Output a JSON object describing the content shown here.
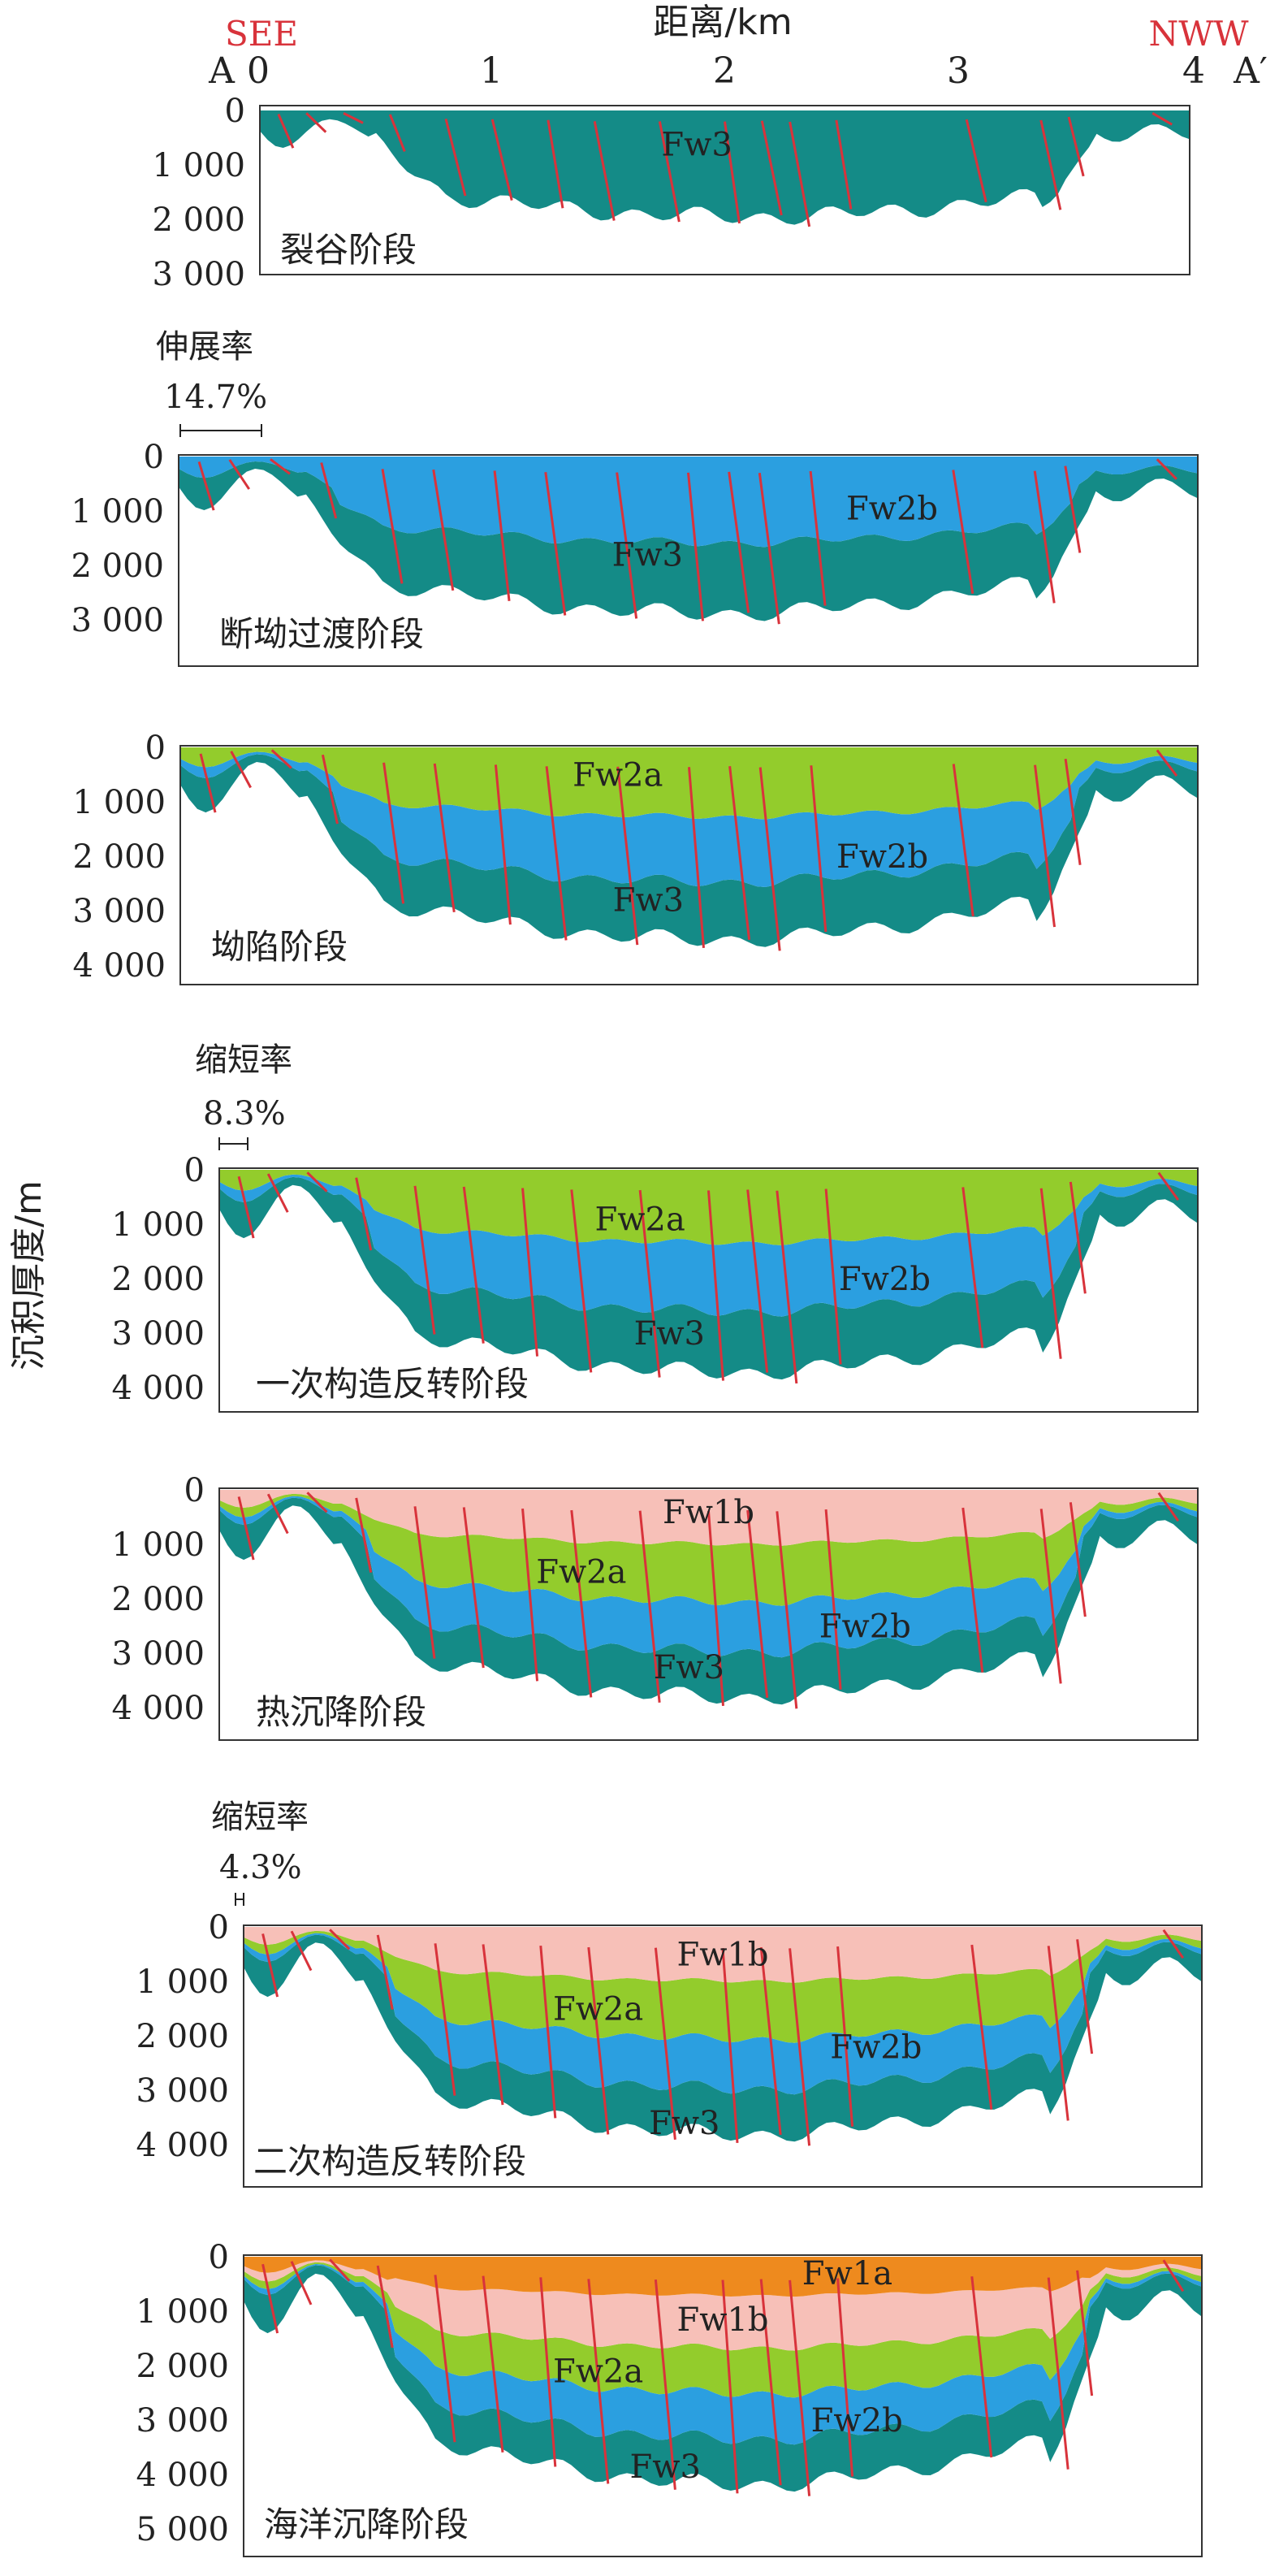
{
  "header": {
    "title": "距离/km",
    "left_end": "A",
    "right_end": "A′",
    "left_direction": "SEE",
    "right_direction": "NWW",
    "x_ticks": [
      "0",
      "1",
      "2",
      "3",
      "4"
    ]
  },
  "y_axis_title": "沉积厚度/m",
  "colors": {
    "Fw3": "#148B87",
    "Fw2b": "#2B9FE0",
    "Fw2a": "#93CC2C",
    "Fw1b": "#F7C0B8",
    "Fw1a": "#EE8A1E",
    "fault": "#D8333B",
    "direction": "#D8333B"
  },
  "panels": [
    {
      "stage": "裂谷阶段",
      "y_ticks": [
        "0",
        "1 000",
        "2 000",
        "3 000"
      ],
      "layers": [
        "Fw3"
      ],
      "labels": [
        "Fw3"
      ]
    },
    {
      "rate_title": "伸展率",
      "rate_value": "14.7%",
      "stage": "断坳过渡阶段",
      "y_ticks": [
        "0",
        "1 000",
        "2 000",
        "3 000"
      ],
      "layers": [
        "Fw3",
        "Fw2b"
      ],
      "labels": [
        "Fw3",
        "Fw2b"
      ]
    },
    {
      "stage": "坳陷阶段",
      "y_ticks": [
        "0",
        "1 000",
        "2 000",
        "3 000",
        "4 000"
      ],
      "layers": [
        "Fw3",
        "Fw2b",
        "Fw2a"
      ],
      "labels": [
        "Fw2a",
        "Fw2b",
        "Fw3"
      ]
    },
    {
      "rate_title": "缩短率",
      "rate_value": "8.3%",
      "stage": "一次构造反转阶段",
      "y_ticks": [
        "0",
        "1 000",
        "2 000",
        "3 000",
        "4 000"
      ],
      "layers": [
        "Fw3",
        "Fw2b",
        "Fw2a"
      ],
      "labels": [
        "Fw2a",
        "Fw2b",
        "Fw3"
      ]
    },
    {
      "stage": "热沉降阶段",
      "y_ticks": [
        "0",
        "1 000",
        "2 000",
        "3 000",
        "4 000"
      ],
      "layers": [
        "Fw3",
        "Fw2b",
        "Fw2a",
        "Fw1b"
      ],
      "labels": [
        "Fw1b",
        "Fw2a",
        "Fw2b",
        "Fw3"
      ]
    },
    {
      "rate_title": "缩短率",
      "rate_value": "4.3%",
      "stage": "二次构造反转阶段",
      "y_ticks": [
        "0",
        "1 000",
        "2 000",
        "3 000",
        "4 000"
      ],
      "layers": [
        "Fw3",
        "Fw2b",
        "Fw2a",
        "Fw1b"
      ],
      "labels": [
        "Fw1b",
        "Fw2a",
        "Fw2b",
        "Fw3"
      ]
    },
    {
      "stage": "海洋沉降阶段",
      "y_ticks": [
        "0",
        "1 000",
        "2 000",
        "3 000",
        "4 000",
        "5 000"
      ],
      "layers": [
        "Fw3",
        "Fw2b",
        "Fw2a",
        "Fw1b",
        "Fw1a"
      ],
      "labels": [
        "Fw1a",
        "Fw1b",
        "Fw2a",
        "Fw2b",
        "Fw3"
      ]
    }
  ]
}
